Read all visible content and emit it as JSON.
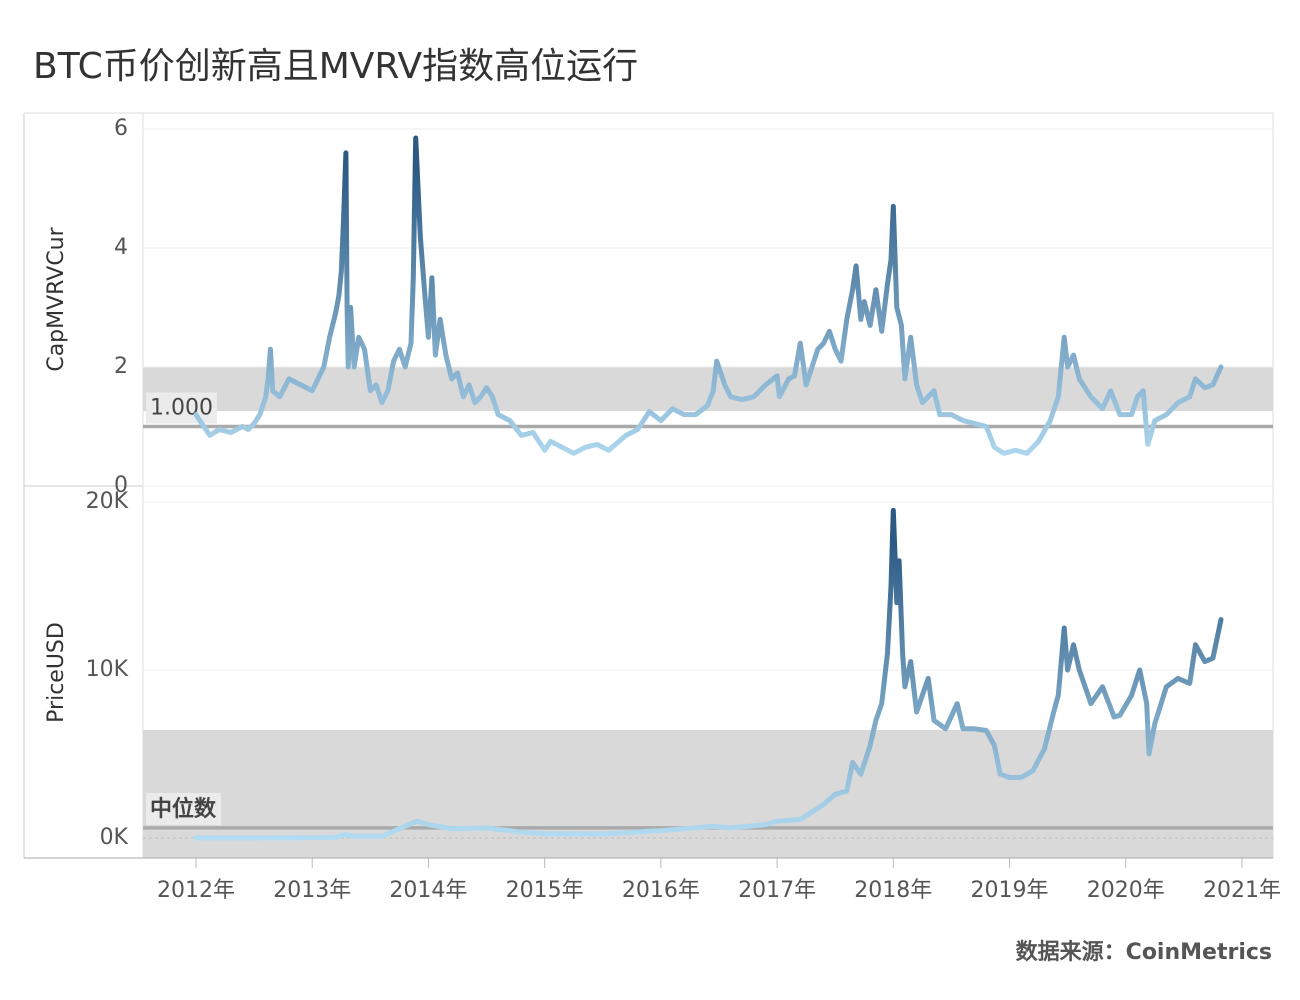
{
  "title": "BTC币价创新高且MVRV指数高位运行",
  "source": "数据来源：CoinMetrics",
  "chart_data": [
    {
      "type": "line",
      "y_label": "CapMVRVCur",
      "xlim": [
        2011.544,
        2021.267
      ],
      "ylim": [
        0,
        6.27
      ],
      "yticks": [
        0,
        2,
        4,
        6
      ],
      "grid": true,
      "color_low": "#b3dcf2",
      "color_high": "#2c5a85",
      "band": [
        1.26,
        2.0
      ],
      "reference_line": {
        "value": 1,
        "label": "1.000"
      },
      "x": [
        2012.0,
        2012.05,
        2012.12,
        2012.2,
        2012.3,
        2012.4,
        2012.45,
        2012.5,
        2012.55,
        2012.6,
        2012.62,
        2012.64,
        2012.66,
        2012.72,
        2012.8,
        2012.9,
        2013.0,
        2013.05,
        2013.1,
        2013.15,
        2013.2,
        2013.23,
        2013.25,
        2013.27,
        2013.29,
        2013.3,
        2013.31,
        2013.33,
        2013.36,
        2013.4,
        2013.45,
        2013.5,
        2013.55,
        2013.6,
        2013.65,
        2013.7,
        2013.75,
        2013.8,
        2013.85,
        2013.87,
        2013.89,
        2013.93,
        2013.97,
        2014.0,
        2014.03,
        2014.06,
        2014.1,
        2014.15,
        2014.2,
        2014.25,
        2014.3,
        2014.35,
        2014.4,
        2014.45,
        2014.5,
        2014.55,
        2014.6,
        2014.7,
        2014.8,
        2014.9,
        2015.0,
        2015.05,
        2015.15,
        2015.25,
        2015.35,
        2015.45,
        2015.55,
        2015.7,
        2015.8,
        2015.9,
        2016.0,
        2016.1,
        2016.2,
        2016.3,
        2016.4,
        2016.45,
        2016.48,
        2016.55,
        2016.6,
        2016.7,
        2016.8,
        2016.9,
        2017.0,
        2017.02,
        2017.1,
        2017.15,
        2017.2,
        2017.25,
        2017.3,
        2017.35,
        2017.4,
        2017.45,
        2017.5,
        2017.55,
        2017.6,
        2017.65,
        2017.68,
        2017.72,
        2017.75,
        2017.8,
        2017.85,
        2017.9,
        2017.95,
        2017.98,
        2018.0,
        2018.03,
        2018.07,
        2018.1,
        2018.15,
        2018.2,
        2018.25,
        2018.3,
        2018.35,
        2018.4,
        2018.5,
        2018.6,
        2018.7,
        2018.8,
        2018.87,
        2018.95,
        2019.05,
        2019.15,
        2019.25,
        2019.35,
        2019.42,
        2019.47,
        2019.5,
        2019.55,
        2019.6,
        2019.7,
        2019.8,
        2019.87,
        2019.95,
        2020.05,
        2020.1,
        2020.15,
        2020.19,
        2020.25,
        2020.35,
        2020.45,
        2020.55,
        2020.6,
        2020.68,
        2020.75,
        2020.82
      ],
      "values": [
        1.2,
        1.05,
        0.85,
        0.95,
        0.9,
        1.0,
        0.95,
        1.05,
        1.2,
        1.5,
        1.8,
        2.3,
        1.6,
        1.5,
        1.8,
        1.7,
        1.6,
        1.8,
        2.0,
        2.5,
        2.9,
        3.2,
        3.6,
        4.5,
        5.6,
        3.0,
        2.0,
        3.0,
        2.0,
        2.5,
        2.3,
        1.6,
        1.7,
        1.4,
        1.6,
        2.1,
        2.3,
        2.0,
        2.4,
        3.5,
        5.85,
        4.2,
        3.2,
        2.5,
        3.5,
        2.2,
        2.8,
        2.2,
        1.8,
        1.9,
        1.5,
        1.7,
        1.4,
        1.5,
        1.65,
        1.5,
        1.2,
        1.1,
        0.85,
        0.9,
        0.6,
        0.75,
        0.65,
        0.55,
        0.65,
        0.7,
        0.6,
        0.85,
        0.95,
        1.25,
        1.1,
        1.3,
        1.2,
        1.2,
        1.35,
        1.6,
        2.1,
        1.7,
        1.5,
        1.45,
        1.5,
        1.7,
        1.85,
        1.5,
        1.8,
        1.85,
        2.4,
        1.7,
        2.0,
        2.3,
        2.4,
        2.6,
        2.3,
        2.1,
        2.8,
        3.3,
        3.7,
        2.8,
        3.1,
        2.7,
        3.3,
        2.6,
        3.4,
        3.8,
        4.7,
        3.0,
        2.7,
        1.8,
        2.5,
        1.7,
        1.4,
        1.5,
        1.6,
        1.2,
        1.2,
        1.1,
        1.05,
        1.0,
        0.65,
        0.55,
        0.6,
        0.55,
        0.75,
        1.1,
        1.5,
        2.5,
        2.0,
        2.2,
        1.8,
        1.5,
        1.3,
        1.6,
        1.2,
        1.2,
        1.5,
        1.6,
        0.7,
        1.1,
        1.2,
        1.4,
        1.5,
        1.8,
        1.65,
        1.7,
        2.0
      ]
    },
    {
      "type": "line",
      "y_label": "PriceUSD",
      "xlim": [
        2011.544,
        2021.267
      ],
      "ylim": [
        -1190,
        20890
      ],
      "yticks": [
        {
          "value": 0,
          "label": "0K"
        },
        {
          "value": 10000,
          "label": "10K"
        },
        {
          "value": 20000,
          "label": "20K"
        }
      ],
      "xticks": [
        {
          "value": 2012,
          "label": "2012年"
        },
        {
          "value": 2013,
          "label": "2013年"
        },
        {
          "value": 2014,
          "label": "2014年"
        },
        {
          "value": 2015,
          "label": "2015年"
        },
        {
          "value": 2016,
          "label": "2016年"
        },
        {
          "value": 2017,
          "label": "2017年"
        },
        {
          "value": 2018,
          "label": "2018年"
        },
        {
          "value": 2019,
          "label": "2019年"
        },
        {
          "value": 2020,
          "label": "2020年"
        },
        {
          "value": 2021,
          "label": "2021年"
        }
      ],
      "grid": true,
      "color_low": "#b3dcf2",
      "color_high": "#2c5a85",
      "band": [
        -1190,
        6430
      ],
      "reference_line": {
        "value": 600,
        "label": "中位数"
      },
      "x": [
        2012.0,
        2012.5,
        2012.9,
        2013.2,
        2013.29,
        2013.35,
        2013.6,
        2013.9,
        2014.0,
        2014.2,
        2014.5,
        2014.8,
        2015.0,
        2015.5,
        2015.9,
        2016.0,
        2016.45,
        2016.6,
        2016.9,
        2017.0,
        2017.2,
        2017.4,
        2017.5,
        2017.6,
        2017.65,
        2017.72,
        2017.8,
        2017.85,
        2017.9,
        2017.95,
        2017.98,
        2018.0,
        2018.03,
        2018.05,
        2018.08,
        2018.1,
        2018.15,
        2018.2,
        2018.25,
        2018.3,
        2018.35,
        2018.45,
        2018.55,
        2018.6,
        2018.7,
        2018.8,
        2018.87,
        2018.92,
        2019.0,
        2019.1,
        2019.2,
        2019.3,
        2019.38,
        2019.42,
        2019.47,
        2019.5,
        2019.55,
        2019.6,
        2019.7,
        2019.8,
        2019.9,
        2019.95,
        2020.05,
        2020.12,
        2020.18,
        2020.2,
        2020.25,
        2020.35,
        2020.45,
        2020.55,
        2020.6,
        2020.68,
        2020.75,
        2020.82
      ],
      "values": [
        5,
        7,
        12,
        40,
        200,
        110,
        100,
        1000,
        800,
        550,
        600,
        350,
        250,
        240,
        400,
        430,
        700,
        600,
        800,
        1000,
        1100,
        2000,
        2600,
        2800,
        4500,
        3800,
        5500,
        7000,
        8000,
        11000,
        15000,
        19500,
        14000,
        16500,
        11000,
        9000,
        10500,
        7500,
        8500,
        9500,
        7000,
        6500,
        8000,
        6500,
        6500,
        6400,
        5500,
        3800,
        3600,
        3600,
        4000,
        5300,
        7500,
        8500,
        12500,
        10000,
        11500,
        10000,
        8000,
        9000,
        7200,
        7300,
        8500,
        10000,
        8000,
        5000,
        6800,
        9000,
        9500,
        9200,
        11500,
        10500,
        10700,
        13000
      ]
    }
  ]
}
